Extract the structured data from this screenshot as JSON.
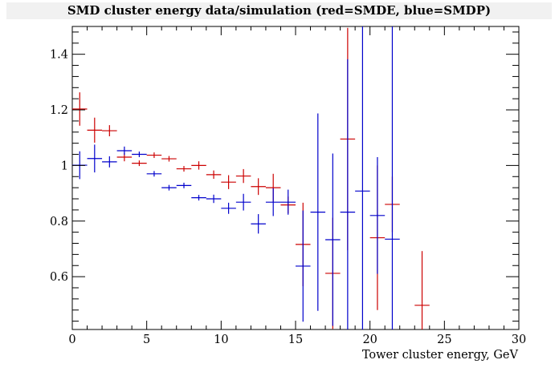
{
  "chart_data": {
    "type": "scatter",
    "title": "SMD cluster energy data/simulation (red=SMDE, blue=SMDP)",
    "xlabel": "Tower cluster energy, GeV",
    "ylabel": "",
    "xlim": [
      0,
      30
    ],
    "ylim": [
      0.41,
      1.5
    ],
    "xticks": [
      0,
      5,
      10,
      15,
      20,
      25,
      30
    ],
    "yticks": [
      0.6,
      0.8,
      1.0,
      1.2,
      1.4
    ],
    "ytick_labels": [
      "0.6",
      "0.8",
      "1",
      "1.2",
      "1.4"
    ],
    "bin_half_width": 0.5,
    "grid": false,
    "series": [
      {
        "name": "SMDE",
        "color": "#cc0000",
        "points": [
          {
            "x": 0.5,
            "y": 1.203,
            "err": 0.06
          },
          {
            "x": 1.5,
            "y": 1.127,
            "err": 0.045
          },
          {
            "x": 2.5,
            "y": 1.125,
            "err": 0.02
          },
          {
            "x": 3.5,
            "y": 1.03,
            "err": 0.015
          },
          {
            "x": 4.5,
            "y": 1.008,
            "err": 0.01
          },
          {
            "x": 5.5,
            "y": 1.037,
            "err": 0.01
          },
          {
            "x": 6.5,
            "y": 1.024,
            "err": 0.01
          },
          {
            "x": 7.5,
            "y": 0.988,
            "err": 0.01
          },
          {
            "x": 8.5,
            "y": 1.0,
            "err": 0.015
          },
          {
            "x": 9.5,
            "y": 0.967,
            "err": 0.015
          },
          {
            "x": 10.5,
            "y": 0.94,
            "err": 0.025
          },
          {
            "x": 11.5,
            "y": 0.962,
            "err": 0.025
          },
          {
            "x": 12.5,
            "y": 0.924,
            "err": 0.03
          },
          {
            "x": 13.5,
            "y": 0.92,
            "err": 0.05
          },
          {
            "x": 14.5,
            "y": 0.858,
            "err": 0.03
          },
          {
            "x": 15.5,
            "y": 0.716,
            "err": 0.15
          },
          {
            "x": 17.5,
            "y": 0.612,
            "err": 0.2
          },
          {
            "x": 18.5,
            "y": 1.095,
            "err": 0.4
          },
          {
            "x": 20.5,
            "y": 0.74,
            "err": 0.26
          },
          {
            "x": 21.5,
            "y": 0.86,
            "err": 0.1
          },
          {
            "x": 23.5,
            "y": 0.497,
            "err": 0.195
          }
        ]
      },
      {
        "name": "SMDP",
        "color": "#0000cc",
        "points": [
          {
            "x": 0.5,
            "y": 1.001,
            "err": 0.05
          },
          {
            "x": 1.5,
            "y": 1.025,
            "err": 0.05
          },
          {
            "x": 2.5,
            "y": 1.013,
            "err": 0.02
          },
          {
            "x": 3.5,
            "y": 1.053,
            "err": 0.015
          },
          {
            "x": 4.5,
            "y": 1.04,
            "err": 0.01
          },
          {
            "x": 5.5,
            "y": 0.97,
            "err": 0.01
          },
          {
            "x": 6.5,
            "y": 0.92,
            "err": 0.01
          },
          {
            "x": 7.5,
            "y": 0.928,
            "err": 0.01
          },
          {
            "x": 8.5,
            "y": 0.884,
            "err": 0.01
          },
          {
            "x": 9.5,
            "y": 0.88,
            "err": 0.015
          },
          {
            "x": 10.5,
            "y": 0.846,
            "err": 0.02
          },
          {
            "x": 11.5,
            "y": 0.868,
            "err": 0.03
          },
          {
            "x": 12.5,
            "y": 0.79,
            "err": 0.035
          },
          {
            "x": 13.5,
            "y": 0.868,
            "err": 0.05
          },
          {
            "x": 14.5,
            "y": 0.868,
            "err": 0.045
          },
          {
            "x": 15.5,
            "y": 0.638,
            "err": 0.2
          },
          {
            "x": 16.5,
            "y": 0.832,
            "err": 0.355
          },
          {
            "x": 17.5,
            "y": 0.733,
            "err": 0.31
          },
          {
            "x": 18.5,
            "y": 0.832,
            "err": 0.55
          },
          {
            "x": 19.5,
            "y": 0.908,
            "err": 0.65
          },
          {
            "x": 20.5,
            "y": 0.82,
            "err": 0.21
          },
          {
            "x": 21.5,
            "y": 0.735,
            "err": 0.8
          }
        ]
      }
    ]
  }
}
